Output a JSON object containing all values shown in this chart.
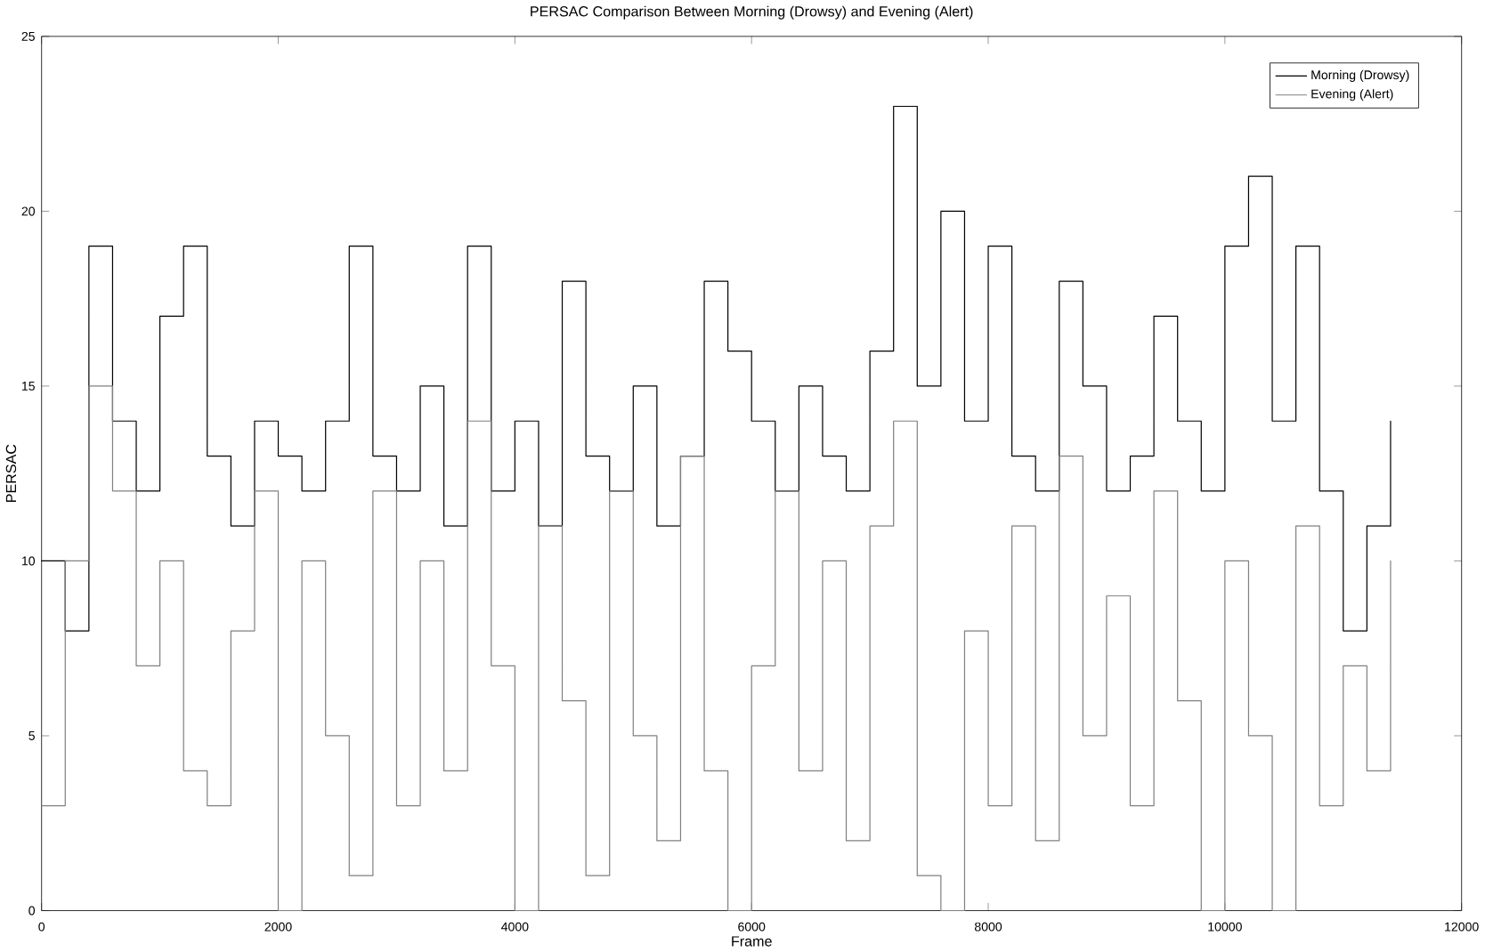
{
  "chart_data": {
    "type": "step",
    "title": "PERSAC Comparison Between Morning (Drowsy) and Evening (Alert)",
    "xlabel": "Frame",
    "ylabel": "PERSAC",
    "x": [
      0,
      200,
      400,
      600,
      800,
      1000,
      1200,
      1400,
      1600,
      1800,
      2000,
      2200,
      2400,
      2600,
      2800,
      3000,
      3200,
      3400,
      3600,
      3800,
      4000,
      4200,
      4400,
      4600,
      4800,
      5000,
      5200,
      5400,
      5600,
      5800,
      6000,
      6200,
      6400,
      6600,
      6800,
      7000,
      7200,
      7400,
      7600,
      7800,
      8000,
      8200,
      8400,
      8600,
      8800,
      9000,
      9200,
      9400,
      9600,
      9800,
      10000,
      10200,
      10400,
      10600,
      10800,
      11000,
      11200,
      11400
    ],
    "series": [
      {
        "name": "Morning (Drowsy)",
        "color": "#000000",
        "values": [
          10,
          8,
          19,
          14,
          12,
          17,
          19,
          13,
          11,
          14,
          13,
          12,
          14,
          19,
          13,
          12,
          15,
          11,
          19,
          12,
          14,
          11,
          18,
          13,
          12,
          15,
          11,
          13,
          18,
          16,
          14,
          12,
          15,
          13,
          12,
          16,
          23,
          15,
          20,
          14,
          19,
          13,
          12,
          18,
          15,
          12,
          13,
          17,
          14,
          12,
          19,
          21,
          14,
          19,
          12,
          8,
          11,
          14
        ]
      },
      {
        "name": "Evening (Alert)",
        "color": "#808080",
        "values": [
          3,
          10,
          15,
          12,
          7,
          10,
          4,
          3,
          8,
          12,
          0,
          10,
          5,
          1,
          12,
          3,
          10,
          4,
          14,
          7,
          0,
          11,
          6,
          1,
          12,
          5,
          2,
          13,
          4,
          0,
          7,
          12,
          4,
          10,
          2,
          11,
          14,
          1,
          0,
          8,
          3,
          11,
          2,
          13,
          5,
          9,
          3,
          12,
          6,
          0,
          10,
          5,
          0,
          11,
          3,
          7,
          4,
          10
        ]
      }
    ],
    "xlim": [
      0,
      12000
    ],
    "ylim": [
      0,
      25
    ],
    "xticks": [
      0,
      2000,
      4000,
      6000,
      8000,
      10000,
      12000
    ],
    "yticks": [
      0,
      5,
      10,
      15,
      20,
      25
    ],
    "legend": "top right",
    "grid": false
  }
}
